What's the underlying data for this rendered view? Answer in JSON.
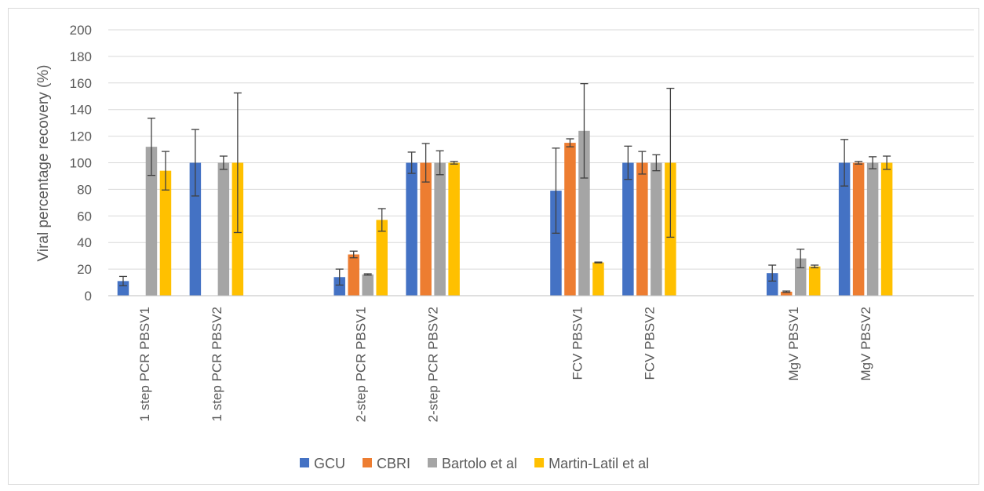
{
  "chart_data": {
    "type": "bar",
    "title": "",
    "xlabel": "",
    "ylabel": "Viral percentage recovery (%)",
    "ylim": [
      0,
      200
    ],
    "yticks": [
      0,
      20,
      40,
      60,
      80,
      100,
      120,
      140,
      160,
      180,
      200
    ],
    "grid": true,
    "legend_position": "bottom",
    "categories": [
      "1 step PCR PBSV1",
      "1 step PCR PBSV2",
      "2-step PCR PBSV1",
      "2-step PCR PBSV2",
      "FCV PBSV1",
      "FCV PBSV2",
      "MgV PBSV1",
      "MgV PBSV2"
    ],
    "series": [
      {
        "name": "GCU",
        "color": "#4472C4",
        "values": [
          11,
          100,
          14,
          100,
          79,
          100,
          17,
          100
        ],
        "errors": [
          3.5,
          25,
          6,
          8,
          32,
          12.5,
          6,
          17.5
        ]
      },
      {
        "name": "CBRI",
        "color": "#ED7D31",
        "values": [
          null,
          null,
          31,
          100,
          115,
          100,
          3,
          100
        ],
        "errors": [
          null,
          null,
          2.5,
          14.5,
          3,
          8.5,
          0.5,
          1
        ]
      },
      {
        "name": "Bartolo et al",
        "color": "#A5A5A5",
        "values": [
          112,
          100,
          16,
          100,
          124,
          100,
          28,
          100
        ],
        "errors": [
          21.5,
          5,
          0.5,
          9,
          35.5,
          6,
          7,
          4.5
        ]
      },
      {
        "name": "Martin-Latil et al",
        "color": "#FFC000",
        "values": [
          94,
          100,
          57,
          100,
          25,
          100,
          22,
          100
        ],
        "errors": [
          14.5,
          52.5,
          8.5,
          1,
          0.3,
          56,
          1,
          5
        ]
      }
    ]
  }
}
